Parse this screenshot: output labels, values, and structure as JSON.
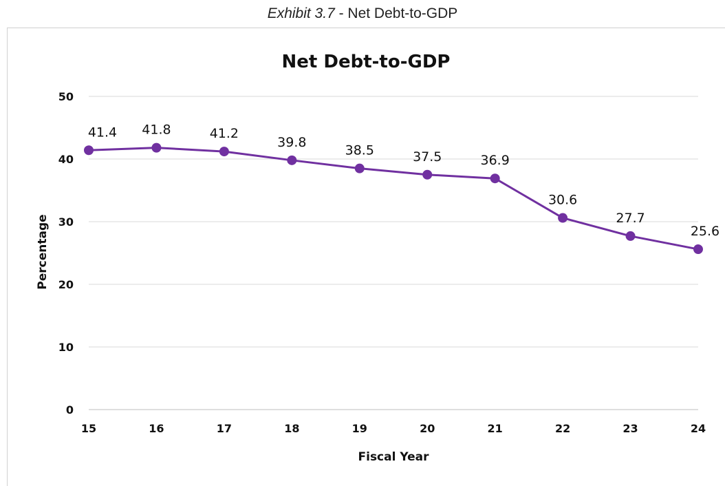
{
  "caption": {
    "lead": "Exhibit 3.7",
    "rest": " - Net Debt-to-GDP"
  },
  "colors": {
    "series": "#7030a0",
    "grid": "#d9d9d9",
    "axis": "#bfbfbf"
  },
  "chart_data": {
    "type": "line",
    "title": "Net Debt-to-GDP",
    "xlabel": "Fiscal Year",
    "ylabel": "Percentage",
    "x": [
      "15",
      "16",
      "17",
      "18",
      "19",
      "20",
      "21",
      "22",
      "23",
      "24"
    ],
    "series": [
      {
        "values": [
          41.4,
          41.8,
          41.2,
          39.8,
          38.5,
          37.5,
          36.9,
          30.6,
          27.7,
          25.6
        ]
      }
    ],
    "ylim": [
      0,
      50
    ],
    "yticks": [
      0,
      10,
      20,
      30,
      40,
      50
    ],
    "grid": true,
    "legend": "none",
    "data_labels": true
  }
}
